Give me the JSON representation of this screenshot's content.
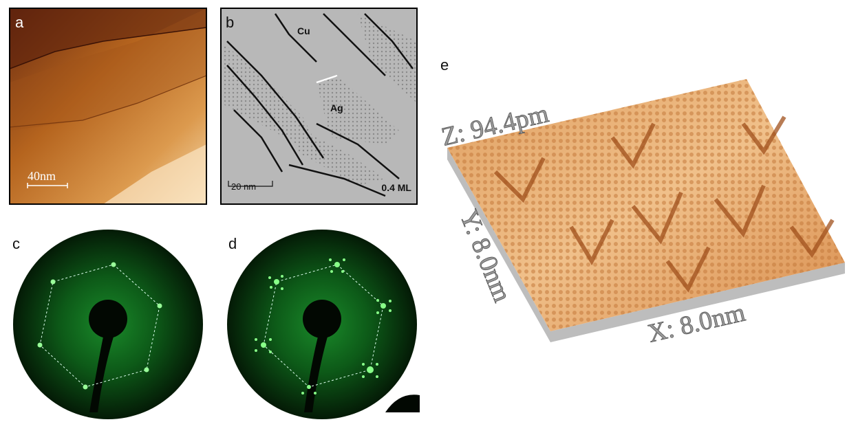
{
  "panels": {
    "a": {
      "label": "a",
      "scale_bar": "40nm"
    },
    "b": {
      "label": "b",
      "cu": "Cu",
      "ag": "Ag",
      "scale_bar": "20 nm",
      "coverage": "0.4 ML"
    },
    "c": {
      "label": "c"
    },
    "d": {
      "label": "d"
    },
    "e": {
      "label": "e",
      "z_axis": "Z: 94.4pm",
      "y_axis": "Y: 8.0nm",
      "x_axis": "X: 8.0nm"
    }
  }
}
